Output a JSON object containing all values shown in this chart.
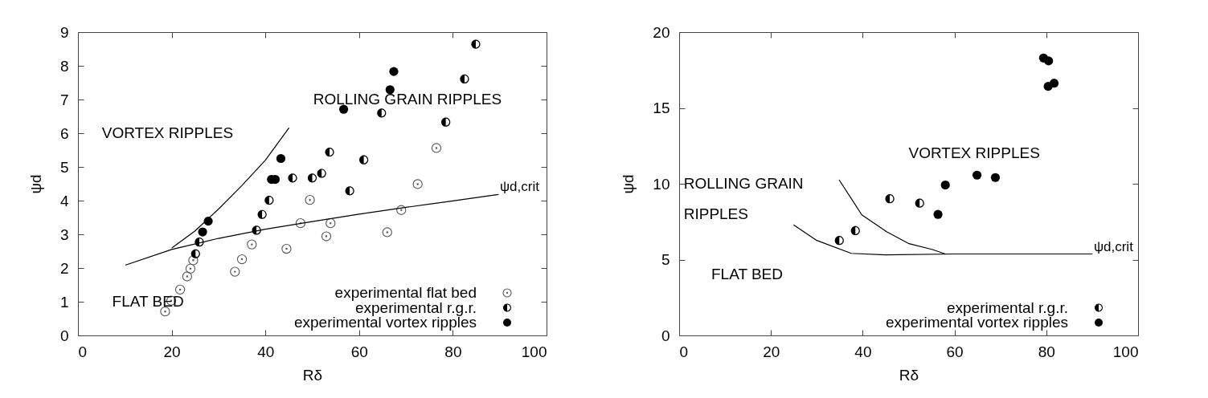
{
  "chart_data": [
    {
      "type": "scatter",
      "xlabel": "Rδ",
      "ylabel": "ψd",
      "xlim": [
        0,
        100
      ],
      "ylim": [
        0,
        9
      ],
      "xticks": [
        0,
        20,
        40,
        60,
        80,
        100
      ],
      "yticks": [
        0,
        1,
        2,
        3,
        4,
        5,
        6,
        7,
        8,
        9
      ],
      "legend": "bottom right",
      "series": [
        {
          "name": "experimental flat bed",
          "color": "#555555",
          "marker": "circle",
          "x": [
            18.6,
            19.9,
            21.8,
            23.3,
            24.0,
            24.6,
            33.5,
            35.0,
            37.1,
            44.5,
            47.5,
            49.5,
            53.0,
            53.9,
            66.0,
            69.0,
            72.5,
            76.5
          ],
          "values": [
            0.71,
            1.03,
            1.36,
            1.75,
            1.98,
            2.23,
            1.89,
            2.26,
            2.7,
            2.57,
            3.33,
            4.02,
            2.94,
            3.33,
            3.06,
            3.72,
            4.49,
            5.56
          ]
        },
        {
          "name": "experimental r.g.r.",
          "color": "#000000",
          "marker": "circle",
          "x": [
            25.1,
            25.9,
            38.1,
            39.3,
            40.8,
            45.8,
            50.0,
            52.0,
            53.7,
            58.0,
            61.0,
            64.8,
            78.5,
            82.5,
            84.9
          ],
          "values": [
            2.42,
            2.77,
            3.12,
            3.59,
            4.01,
            4.67,
            4.67,
            4.81,
            5.44,
            4.29,
            5.21,
            6.6,
            6.33,
            7.61,
            8.64
          ]
        },
        {
          "name": "experimental vortex ripples",
          "color": "#000000",
          "marker": "circle",
          "x": [
            26.6,
            27.8,
            41.3,
            42.1,
            43.3,
            56.7,
            66.6,
            67.4
          ],
          "values": [
            3.07,
            3.39,
            4.63,
            4.63,
            5.25,
            6.71,
            7.29,
            7.83
          ]
        },
        {
          "type": "line",
          "name": "ψd,crit",
          "color": "#000000",
          "x": [
            10.2,
            20,
            30,
            40,
            50,
            60,
            70,
            80,
            89.7
          ],
          "values": [
            2.09,
            2.55,
            2.88,
            3.15,
            3.38,
            3.6,
            3.8,
            3.99,
            4.18
          ]
        },
        {
          "type": "line",
          "color": "#000000",
          "x": [
            20.1,
            25,
            30,
            35,
            40,
            45
          ],
          "values": [
            2.6,
            3.1,
            3.75,
            4.45,
            5.2,
            6.15
          ]
        }
      ],
      "annotations": [
        "VORTEX RIPPLES",
        "ROLLING GRAIN RIPPLES",
        "FLAT BED"
      ]
    },
    {
      "type": "scatter",
      "xlabel": "Rδ",
      "ylabel": "ψd",
      "xlim": [
        0,
        100
      ],
      "ylim": [
        0,
        20
      ],
      "xticks": [
        0,
        20,
        40,
        60,
        80,
        100
      ],
      "yticks": [
        0,
        5,
        10,
        15,
        20
      ],
      "legend": "bottom right",
      "series": [
        {
          "name": "experimental r.g.r.",
          "color": "#000000",
          "marker": "circle",
          "x": [
            34.9,
            38.4,
            45.9,
            52.4
          ],
          "values": [
            6.26,
            6.91,
            9.01,
            8.72
          ]
        },
        {
          "name": "experimental vortex ripples",
          "color": "#000000",
          "marker": "circle",
          "x": [
            56.4,
            58.0,
            64.9,
            68.9,
            79.4,
            80.5,
            80.4,
            81.7
          ],
          "values": [
            7.98,
            9.92,
            10.57,
            10.41,
            18.29,
            18.1,
            16.42,
            16.63
          ]
        },
        {
          "type": "line",
          "name": "ψd,crit",
          "color": "#000000",
          "x": [
            25,
            30,
            37.5,
            45,
            60,
            90
          ],
          "values": [
            7.28,
            6.26,
            5.41,
            5.31,
            5.37,
            5.37
          ]
        },
        {
          "type": "line",
          "color": "#000000",
          "x": [
            34.9,
            39.8,
            45.2,
            50.1,
            55.2,
            58
          ],
          "values": [
            10.24,
            7.95,
            6.84,
            6.05,
            5.66,
            5.37
          ]
        }
      ],
      "annotations": [
        "VORTEX RIPPLES",
        "ROLLING GRAIN",
        "RIPPLES",
        "FLAT BED"
      ]
    }
  ]
}
